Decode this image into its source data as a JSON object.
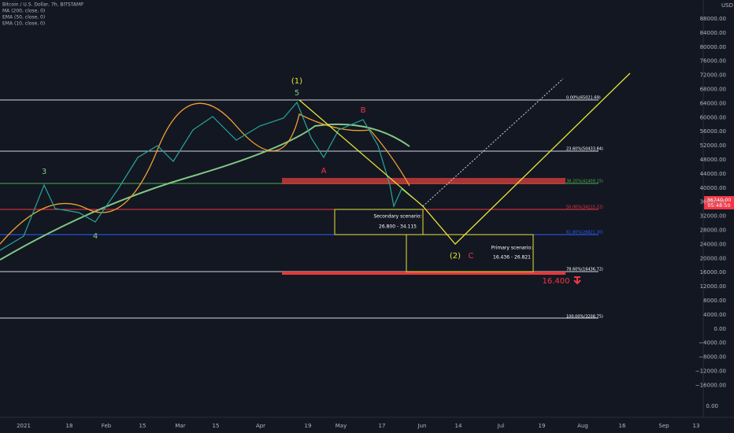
{
  "legend": [
    "Bitcoin / U.S. Dollar, 7h, BITSTAMP",
    "MA (200, close, 0)",
    "EMA (50, close, 0)",
    "EMA (10, close, 0)"
  ],
  "axis_currency": "USD",
  "y_labels": [
    "88000.00",
    "84000.00",
    "80000.00",
    "76000.00",
    "72000.00",
    "68000.00",
    "64000.00",
    "60000.00",
    "56000.00",
    "52000.00",
    "48000.00",
    "44000.00",
    "40000.00",
    "36000.00",
    "32000.00",
    "28000.00",
    "24000.00",
    "20000.00",
    "16000.00",
    "12000.00",
    "8000.00",
    "4000.00",
    "0.00",
    "−4000.00",
    "−8000.00",
    "−12000.00",
    "−16000.00"
  ],
  "lower_pane_label": "0.00",
  "x_labels": [
    "2021",
    "18",
    "Feb",
    "15",
    "Mar",
    "15",
    "Apr",
    "19",
    "May",
    "17",
    "Jun",
    "14",
    "Jul",
    "19",
    "Aug",
    "16",
    "Sep",
    "13"
  ],
  "price_tag": {
    "price": "36740.00",
    "countdown": "05:48:50"
  },
  "fib_levels": [
    "0.00%(65021.69)",
    "23.60%(50433.84)",
    "38.20%(41409.15)",
    "50.00%(34115.22)",
    "61.80%(26821.30)",
    "78.60%(16436.72)",
    "100.00%(3208.75)"
  ],
  "waves": [
    "(1)",
    "5",
    "3",
    "4",
    "A",
    "B",
    "(2)",
    "C"
  ],
  "secondary": {
    "title": "Secondary scenario:",
    "range": "26.800 - 34.115"
  },
  "primary": {
    "title": "Primary scenario:",
    "range": "16.436 - 26.821"
  },
  "target": "16.400"
}
